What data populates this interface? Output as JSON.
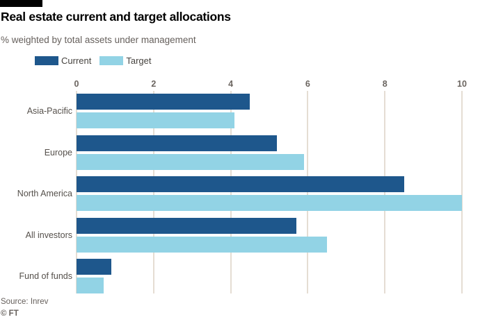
{
  "header": {
    "title": "Real estate current and target allocations",
    "subtitle": "% weighted by total assets under management"
  },
  "legend": {
    "items": [
      {
        "label": "Current",
        "color": "#1e578c"
      },
      {
        "label": "Target",
        "color": "#92d3e5"
      }
    ]
  },
  "colors": {
    "current_bar": "#1e578c",
    "target_bar": "#92d3e5",
    "gridline": "#e5ddd3",
    "muted_text": "#66605c",
    "title_text": "#000000",
    "top_rule": "#000000"
  },
  "chart_data": {
    "type": "bar",
    "orientation": "horizontal",
    "title": "Real estate current and target allocations",
    "subtitle": "% weighted by total assets under management",
    "categories": [
      "Asia-Pacific",
      "Europe",
      "North America",
      "All investors",
      "Fund of funds"
    ],
    "series": [
      {
        "name": "Current",
        "color": "#1e578c",
        "values": [
          4.5,
          5.2,
          8.5,
          5.7,
          0.9
        ]
      },
      {
        "name": "Target",
        "color": "#92d3e5",
        "values": [
          4.1,
          5.9,
          10.0,
          6.5,
          0.7
        ]
      }
    ],
    "xlim": [
      0,
      10
    ],
    "xticks": [
      "0",
      "2",
      "4",
      "6",
      "8",
      "10"
    ],
    "grid": true,
    "legend_position": "top"
  },
  "footer": {
    "source": "Source: Inrev",
    "credit": "© FT"
  }
}
